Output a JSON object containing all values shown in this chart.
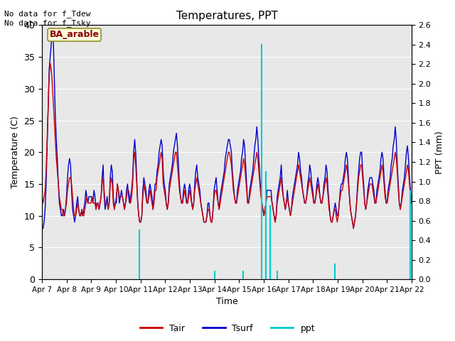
{
  "title": "Temperatures, PPT",
  "xlabel": "Time",
  "ylabel_left": "Temperature (C)",
  "ylabel_right": "PPT (mm)",
  "annotation_text": "No data for f_Tdew\nNo data for f_Tsky",
  "station_label": "BA_arable",
  "tair_color": "#cc0000",
  "tsurf_color": "#0000cc",
  "ppt_color": "#00cccc",
  "xlim": [
    0,
    15
  ],
  "ylim_left": [
    0,
    40
  ],
  "ylim_right": [
    0,
    2.6
  ],
  "yticks_left": [
    0,
    5,
    10,
    15,
    20,
    25,
    30,
    35,
    40
  ],
  "yticks_right": [
    0.0,
    0.2,
    0.4,
    0.6,
    0.8,
    1.0,
    1.2,
    1.4,
    1.6,
    1.8,
    2.0,
    2.2,
    2.4,
    2.6
  ],
  "xtick_labels": [
    "Apr 7",
    "Apr 8",
    "Apr 9",
    "Apr 10",
    "Apr 11",
    "Apr 12",
    "Apr 13",
    "Apr 14",
    "Apr 15",
    "Apr 16",
    "Apr 17",
    "Apr 18",
    "Apr 19",
    "Apr 20",
    "Apr 21",
    "Apr 22"
  ],
  "xtick_positions": [
    0,
    1,
    2,
    3,
    4,
    5,
    6,
    7,
    8,
    9,
    10,
    11,
    12,
    13,
    14,
    15
  ],
  "plot_bg_color": "#e8e8e8",
  "fig_bg_color": "#ffffff",
  "linewidth": 1.0,
  "ppt_linewidth": 1.5,
  "tair_data": [
    13,
    12,
    13,
    14,
    17,
    22,
    27,
    32,
    34,
    33,
    31,
    28,
    25,
    22,
    19,
    17,
    15,
    13,
    12,
    11,
    11,
    10,
    10,
    11,
    12,
    14,
    15,
    16,
    16,
    15,
    13,
    11,
    10,
    10,
    11,
    12,
    11,
    10,
    10,
    11,
    10,
    10,
    11,
    12,
    13,
    12,
    12,
    12,
    12,
    13,
    12,
    12,
    12,
    11,
    12,
    12,
    11,
    12,
    13,
    15,
    16,
    14,
    12,
    12,
    12,
    11,
    12,
    15,
    16,
    15,
    12,
    11,
    12,
    13,
    15,
    14,
    13,
    13,
    13,
    13,
    12,
    11,
    12,
    13,
    14,
    14,
    13,
    12,
    13,
    15,
    19,
    20,
    18,
    15,
    12,
    10,
    9,
    9,
    10,
    13,
    15,
    14,
    13,
    12,
    12,
    13,
    14,
    13,
    12,
    11,
    12,
    14,
    14,
    16,
    17,
    18,
    19,
    20,
    19,
    15,
    14,
    13,
    12,
    11,
    12,
    14,
    15,
    16,
    17,
    18,
    19,
    20,
    20,
    18,
    16,
    14,
    13,
    12,
    12,
    13,
    14,
    13,
    12,
    12,
    13,
    14,
    13,
    12,
    11,
    12,
    14,
    15,
    16,
    15,
    14,
    13,
    12,
    11,
    10,
    9,
    9,
    9,
    10,
    11,
    11,
    10,
    9,
    9,
    11,
    13,
    14,
    14,
    13,
    12,
    11,
    12,
    13,
    14,
    15,
    16,
    17,
    18,
    19,
    20,
    20,
    19,
    18,
    16,
    14,
    13,
    12,
    12,
    13,
    14,
    15,
    16,
    17,
    18,
    19,
    18,
    16,
    14,
    12,
    12,
    13,
    14,
    15,
    16,
    17,
    18,
    19,
    20,
    19,
    17,
    15,
    13,
    12,
    11,
    10,
    11,
    12,
    13,
    13,
    13,
    13,
    13,
    12,
    11,
    10,
    9,
    10,
    12,
    13,
    14,
    15,
    16,
    14,
    13,
    12,
    11,
    12,
    13,
    12,
    11,
    10,
    11,
    12,
    13,
    14,
    15,
    16,
    17,
    18,
    17,
    16,
    15,
    14,
    13,
    12,
    12,
    13,
    14,
    15,
    16,
    15,
    14,
    13,
    12,
    12,
    13,
    14,
    15,
    14,
    13,
    12,
    12,
    13,
    14,
    15,
    16,
    15,
    13,
    11,
    10,
    9,
    9,
    10,
    11,
    11,
    10,
    9,
    10,
    12,
    13,
    14,
    14,
    15,
    16,
    17,
    18,
    17,
    15,
    13,
    11,
    10,
    9,
    8,
    9,
    10,
    12,
    14,
    16,
    17,
    18,
    18,
    16,
    14,
    12,
    11,
    12,
    13,
    14,
    15,
    15,
    15,
    14,
    13,
    12,
    12,
    13,
    14,
    15,
    16,
    17,
    18,
    17,
    15,
    13,
    12,
    12,
    13,
    14,
    15,
    16,
    17,
    18,
    19,
    20,
    19,
    17,
    14,
    12,
    11,
    12,
    13,
    14,
    15,
    16,
    17,
    18,
    17,
    15,
    13,
    12
  ],
  "tsurf_data": [
    8,
    8,
    9,
    11,
    15,
    21,
    27,
    33,
    35,
    37,
    39,
    38,
    32,
    26,
    22,
    19,
    15,
    12,
    11,
    10,
    10,
    11,
    10,
    11,
    13,
    16,
    18,
    19,
    18,
    14,
    11,
    10,
    9,
    10,
    12,
    13,
    11,
    10,
    10,
    11,
    10,
    11,
    12,
    14,
    13,
    12,
    13,
    13,
    13,
    13,
    12,
    14,
    13,
    11,
    12,
    12,
    11,
    12,
    13,
    16,
    18,
    13,
    11,
    12,
    13,
    11,
    12,
    16,
    18,
    17,
    13,
    11,
    12,
    12,
    15,
    14,
    12,
    13,
    14,
    13,
    12,
    11,
    12,
    14,
    15,
    13,
    12,
    13,
    14,
    16,
    20,
    22,
    20,
    16,
    12,
    10,
    9,
    9,
    10,
    14,
    16,
    15,
    14,
    12,
    12,
    14,
    15,
    14,
    13,
    11,
    13,
    15,
    15,
    17,
    18,
    20,
    21,
    22,
    21,
    17,
    15,
    14,
    12,
    11,
    12,
    15,
    16,
    17,
    18,
    20,
    21,
    22,
    23,
    21,
    18,
    15,
    13,
    12,
    12,
    14,
    15,
    14,
    12,
    12,
    14,
    15,
    14,
    12,
    11,
    12,
    15,
    17,
    18,
    16,
    15,
    14,
    12,
    11,
    10,
    9,
    9,
    9,
    10,
    12,
    12,
    10,
    9,
    9,
    11,
    14,
    15,
    16,
    14,
    12,
    11,
    13,
    14,
    15,
    16,
    17,
    19,
    20,
    21,
    22,
    22,
    21,
    20,
    17,
    15,
    13,
    12,
    12,
    14,
    15,
    16,
    17,
    19,
    20,
    22,
    21,
    18,
    15,
    12,
    12,
    14,
    15,
    16,
    17,
    19,
    21,
    22,
    24,
    22,
    19,
    16,
    14,
    12,
    11,
    10,
    11,
    12,
    14,
    14,
    14,
    14,
    14,
    12,
    11,
    10,
    9,
    10,
    13,
    14,
    15,
    16,
    18,
    15,
    13,
    12,
    11,
    12,
    14,
    12,
    11,
    10,
    11,
    13,
    14,
    15,
    16,
    17,
    18,
    20,
    19,
    17,
    16,
    14,
    13,
    12,
    12,
    13,
    15,
    16,
    18,
    17,
    15,
    14,
    12,
    12,
    13,
    15,
    16,
    15,
    13,
    12,
    12,
    13,
    15,
    16,
    18,
    17,
    14,
    12,
    10,
    9,
    9,
    10,
    11,
    12,
    11,
    10,
    10,
    12,
    14,
    15,
    15,
    16,
    17,
    19,
    20,
    19,
    16,
    13,
    11,
    10,
    9,
    8,
    9,
    10,
    12,
    15,
    17,
    19,
    20,
    20,
    17,
    15,
    12,
    11,
    12,
    14,
    15,
    16,
    16,
    16,
    15,
    14,
    12,
    12,
    14,
    15,
    16,
    17,
    19,
    20,
    19,
    16,
    14,
    12,
    12,
    14,
    15,
    16,
    18,
    19,
    21,
    22,
    24,
    22,
    18,
    15,
    12,
    11,
    12,
    14,
    15,
    16,
    18,
    20,
    21,
    19,
    16,
    14,
    12
  ],
  "ppt_events": [
    {
      "x": 4.0,
      "height": 0.45
    },
    {
      "x": 10.95,
      "height": 0.5
    },
    {
      "x": 14.0,
      "height": 0.08
    },
    {
      "x": 15.15,
      "height": 0.08
    },
    {
      "x": 15.9,
      "height": 2.4
    },
    {
      "x": 16.1,
      "height": 1.1
    },
    {
      "x": 16.25,
      "height": 0.75
    },
    {
      "x": 16.55,
      "height": 0.08
    },
    {
      "x": 18.9,
      "height": 0.15
    },
    {
      "x": 21.95,
      "height": 0.9
    }
  ]
}
